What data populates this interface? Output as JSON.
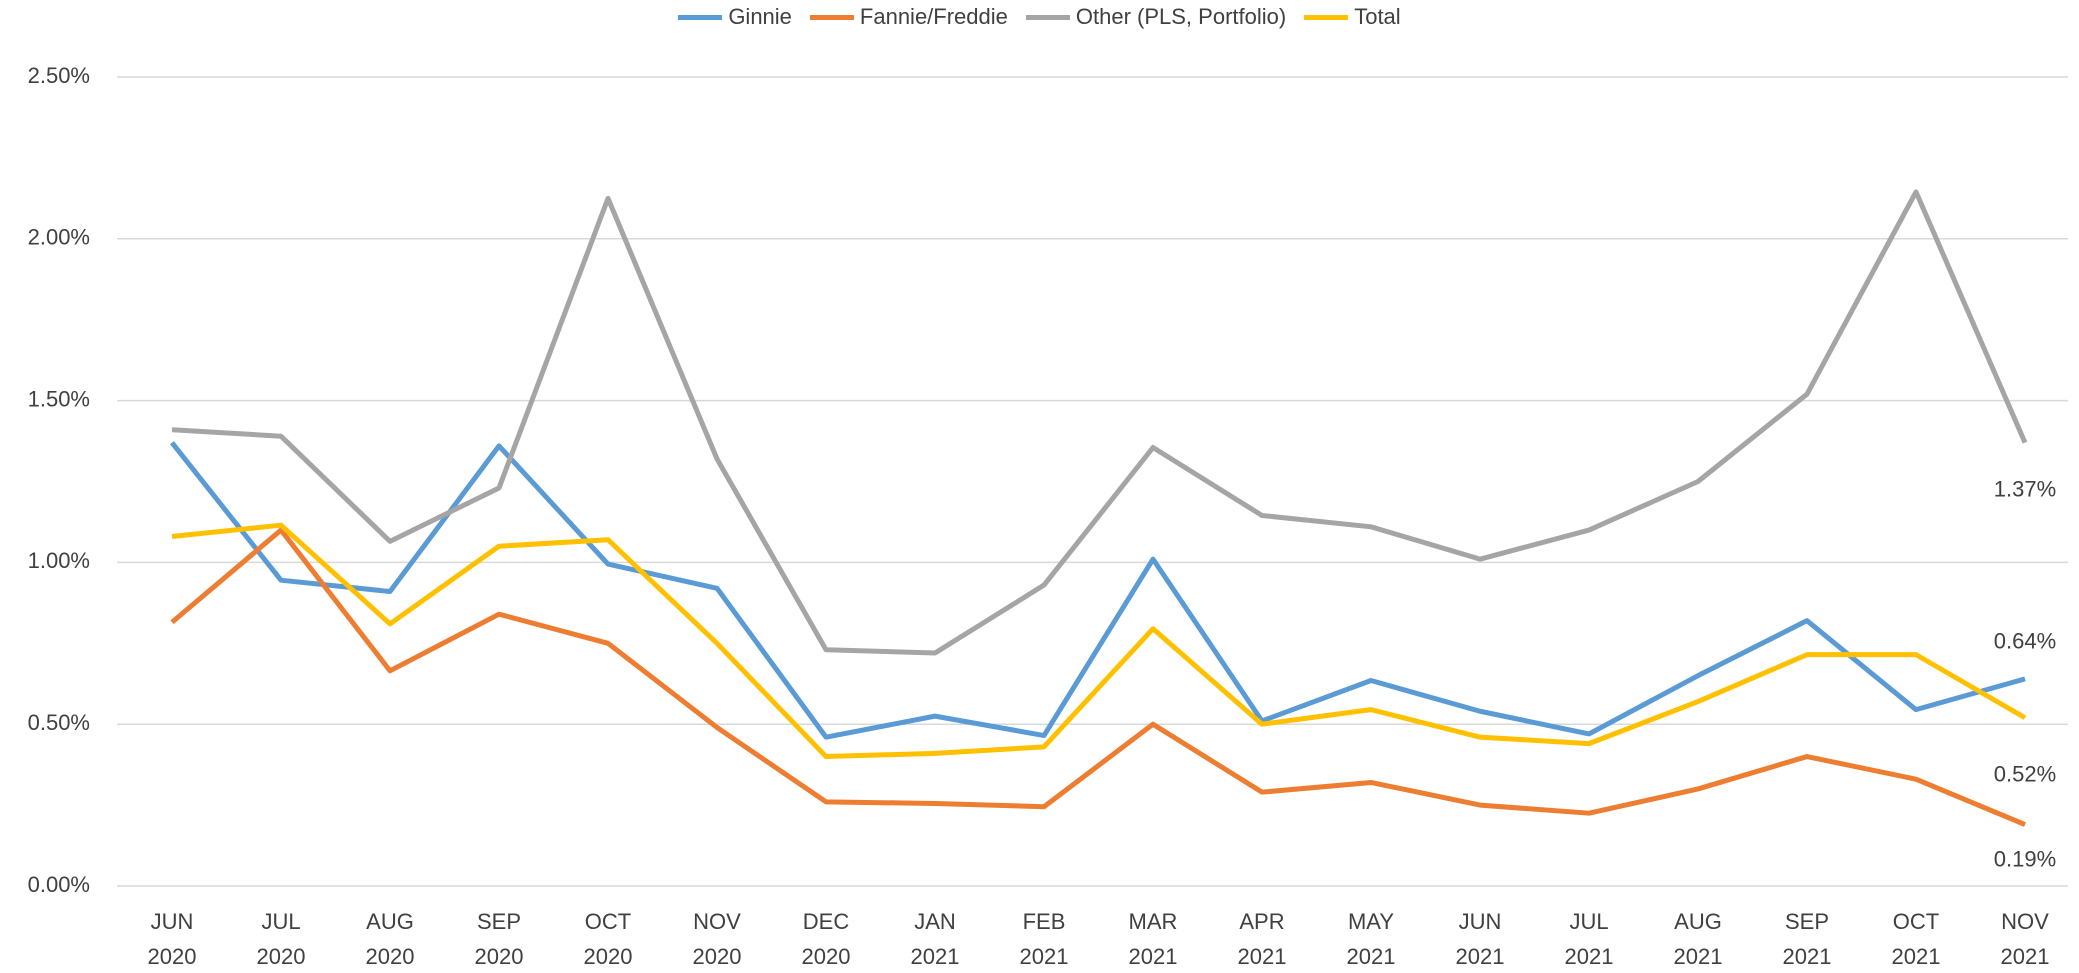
{
  "chart_data": {
    "type": "line",
    "categories": [
      "JUN 2020",
      "JUL 2020",
      "AUG 2020",
      "SEP 2020",
      "OCT 2020",
      "NOV 2020",
      "DEC 2020",
      "JAN 2021",
      "FEB 2021",
      "MAR 2021",
      "APR 2021",
      "MAY 2021",
      "JUN 2021",
      "JUL 2021",
      "AUG 2021",
      "SEP 2021",
      "OCT 2021",
      "NOV 2021"
    ],
    "series": [
      {
        "name": "Ginnie",
        "color": "#5b9bd5",
        "values": [
          1.37,
          0.945,
          0.91,
          1.36,
          0.995,
          0.92,
          0.46,
          0.525,
          0.465,
          1.01,
          0.51,
          0.635,
          0.54,
          0.47,
          0.65,
          0.82,
          0.545,
          0.64
        ],
        "value_labels": [
          null,
          null,
          null,
          null,
          null,
          null,
          null,
          null,
          null,
          null,
          null,
          null,
          null,
          null,
          null,
          null,
          null,
          "0.64%"
        ]
      },
      {
        "name": "Fannie/Freddie",
        "color": "#ed7d31",
        "values": [
          0.815,
          1.1,
          0.665,
          0.84,
          0.75,
          0.49,
          0.26,
          0.255,
          0.245,
          0.5,
          0.29,
          0.32,
          0.25,
          0.225,
          0.3,
          0.4,
          0.33,
          0.19
        ],
        "value_labels": [
          null,
          null,
          null,
          null,
          null,
          null,
          null,
          null,
          null,
          null,
          null,
          null,
          null,
          null,
          null,
          null,
          null,
          "0.19%"
        ]
      },
      {
        "name": "Other (PLS, Portfolio)",
        "color": "#a5a5a5",
        "values": [
          1.41,
          1.39,
          1.065,
          1.23,
          2.125,
          1.32,
          0.73,
          0.72,
          0.93,
          1.355,
          1.145,
          1.11,
          1.01,
          1.1,
          1.25,
          1.52,
          2.145,
          1.37
        ],
        "value_labels": [
          null,
          null,
          null,
          null,
          null,
          null,
          null,
          null,
          null,
          null,
          null,
          null,
          null,
          null,
          null,
          null,
          null,
          "1.37%"
        ]
      },
      {
        "name": "Total",
        "color": "#ffc000",
        "values": [
          1.08,
          1.115,
          0.81,
          1.05,
          1.07,
          0.75,
          0.4,
          0.41,
          0.43,
          0.795,
          0.5,
          0.545,
          0.46,
          0.44,
          0.57,
          0.715,
          0.715,
          0.52
        ],
        "value_labels": [
          null,
          null,
          null,
          null,
          null,
          null,
          null,
          null,
          null,
          null,
          null,
          null,
          null,
          null,
          null,
          null,
          null,
          "0.52%"
        ]
      }
    ],
    "ylim": [
      0,
      2.5
    ],
    "yticks": [
      {
        "value": 0,
        "label": "0.00%"
      },
      {
        "value": 0.5,
        "label": "0.50%"
      },
      {
        "value": 1,
        "label": "1.00%"
      },
      {
        "value": 1.5,
        "label": "1.50%"
      },
      {
        "value": 2,
        "label": "2.00%"
      },
      {
        "value": 2.5,
        "label": "2.50%"
      }
    ],
    "grid": true,
    "legend": "top"
  }
}
